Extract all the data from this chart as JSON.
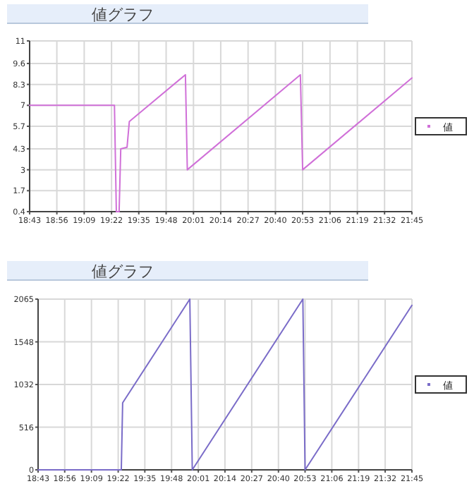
{
  "chart_data": [
    {
      "type": "line",
      "title": "値グラフ",
      "xlim": [
        18.717,
        21.75
      ],
      "ylim": [
        0.4,
        11
      ],
      "xticks": [
        {
          "value": 18.717,
          "label": "18:43"
        },
        {
          "value": 18.933,
          "label": "18:56"
        },
        {
          "value": 19.15,
          "label": "19:09"
        },
        {
          "value": 19.367,
          "label": "19:22"
        },
        {
          "value": 19.583,
          "label": "19:35"
        },
        {
          "value": 19.8,
          "label": "19:48"
        },
        {
          "value": 20.017,
          "label": "20:01"
        },
        {
          "value": 20.233,
          "label": "20:14"
        },
        {
          "value": 20.45,
          "label": "20:27"
        },
        {
          "value": 20.667,
          "label": "20:40"
        },
        {
          "value": 20.883,
          "label": "20:53"
        },
        {
          "value": 21.1,
          "label": "21:06"
        },
        {
          "value": 21.317,
          "label": "21:19"
        },
        {
          "value": 21.533,
          "label": "21:32"
        },
        {
          "value": 21.75,
          "label": "21:45"
        }
      ],
      "yticks": [
        0.4,
        1.7,
        3,
        4.3,
        5.7,
        7,
        8.3,
        9.6,
        11
      ],
      "grid": true,
      "legend": "right",
      "marker": "none",
      "line_style": "solid",
      "series": [
        {
          "name": "値",
          "color": "#d070d8",
          "x": [
            18.717,
            19.39,
            19.405,
            19.427,
            19.44,
            19.49,
            19.508,
            19.953,
            19.968,
            20.865,
            20.883,
            21.75
          ],
          "values": [
            7,
            7,
            0.4,
            0.4,
            4.3,
            4.4,
            6,
            8.9,
            3,
            8.9,
            3,
            8.7
          ]
        }
      ]
    },
    {
      "type": "line",
      "title": "値グラフ",
      "xlim": [
        18.717,
        21.75
      ],
      "ylim": [
        0,
        2065
      ],
      "xticks": [
        {
          "value": 18.717,
          "label": "18:43"
        },
        {
          "value": 18.933,
          "label": "18:56"
        },
        {
          "value": 19.15,
          "label": "19:09"
        },
        {
          "value": 19.367,
          "label": "19:22"
        },
        {
          "value": 19.583,
          "label": "19:35"
        },
        {
          "value": 19.8,
          "label": "19:48"
        },
        {
          "value": 20.017,
          "label": "20:01"
        },
        {
          "value": 20.233,
          "label": "20:14"
        },
        {
          "value": 20.45,
          "label": "20:27"
        },
        {
          "value": 20.667,
          "label": "20:40"
        },
        {
          "value": 20.883,
          "label": "20:53"
        },
        {
          "value": 21.1,
          "label": "21:06"
        },
        {
          "value": 21.317,
          "label": "21:19"
        },
        {
          "value": 21.533,
          "label": "21:32"
        },
        {
          "value": 21.75,
          "label": "21:45"
        }
      ],
      "yticks": [
        0,
        516,
        1032,
        1548,
        2065
      ],
      "grid": true,
      "legend": "right",
      "marker": "none",
      "line_style": "solid",
      "series": [
        {
          "name": "値",
          "color": "#7a6cc8",
          "x": [
            18.717,
            19.392,
            19.403,
            19.948,
            19.968,
            20.865,
            20.883,
            21.75
          ],
          "values": [
            0,
            0,
            810,
            2065,
            0,
            2065,
            0,
            1990
          ]
        }
      ]
    }
  ]
}
